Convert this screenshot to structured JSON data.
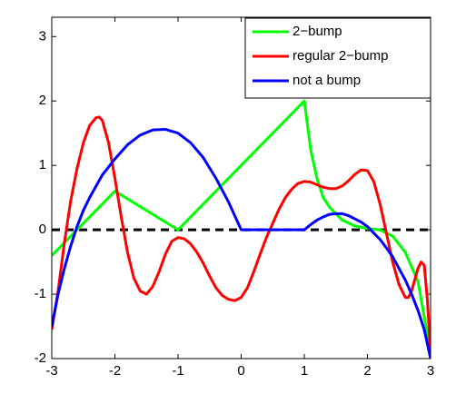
{
  "chart_data": {
    "type": "line",
    "xlim": [
      -3,
      3
    ],
    "ylim": [
      -2,
      3.3
    ],
    "xticks": [
      -3,
      -2,
      -1,
      0,
      1,
      2,
      3
    ],
    "yticks": [
      -2,
      -1,
      0,
      1,
      2,
      3
    ],
    "legend": "upper right",
    "reference_line": {
      "y": 0,
      "color": "#000000",
      "dashed": true
    },
    "series": [
      {
        "name": "2−bump",
        "color": "#00ff00",
        "x": [
          -3,
          -2,
          -1,
          1,
          1.1,
          1.2,
          1.3,
          1.4,
          1.6,
          1.8,
          2,
          2.2,
          2.4,
          2.6,
          2.8,
          3
        ],
        "values": [
          -0.4,
          0.6,
          0,
          2,
          1.25,
          0.8,
          0.5,
          0.35,
          0.15,
          0.06,
          0.02,
          0,
          -0.1,
          -0.35,
          -0.8,
          -1.9
        ]
      },
      {
        "name": "regular 2−bump",
        "color": "#ff0000",
        "x": [
          -3,
          -2.9,
          -2.8,
          -2.7,
          -2.6,
          -2.5,
          -2.4,
          -2.3,
          -2.25,
          -2.2,
          -2.1,
          -2,
          -1.9,
          -1.8,
          -1.7,
          -1.6,
          -1.5,
          -1.4,
          -1.3,
          -1.2,
          -1.1,
          -1,
          -0.9,
          -0.8,
          -0.7,
          -0.6,
          -0.5,
          -0.4,
          -0.3,
          -0.2,
          -0.1,
          0,
          0.1,
          0.2,
          0.3,
          0.4,
          0.5,
          0.6,
          0.7,
          0.8,
          0.9,
          1,
          1.1,
          1.2,
          1.3,
          1.4,
          1.5,
          1.6,
          1.7,
          1.8,
          1.9,
          2,
          2.1,
          2.2,
          2.3,
          2.4,
          2.5,
          2.6,
          2.65,
          2.7,
          2.8,
          2.85,
          2.9,
          2.95,
          3
        ],
        "values": [
          -1.55,
          -0.95,
          -0.2,
          0.45,
          0.95,
          1.35,
          1.62,
          1.74,
          1.75,
          1.7,
          1.35,
          0.8,
          0.2,
          -0.35,
          -0.75,
          -0.95,
          -1.0,
          -0.88,
          -0.65,
          -0.38,
          -0.18,
          -0.12,
          -0.14,
          -0.22,
          -0.35,
          -0.52,
          -0.72,
          -0.9,
          -1.02,
          -1.08,
          -1.1,
          -1.05,
          -0.9,
          -0.65,
          -0.38,
          -0.12,
          0.1,
          0.32,
          0.5,
          0.63,
          0.72,
          0.75,
          0.74,
          0.7,
          0.66,
          0.64,
          0.64,
          0.68,
          0.76,
          0.86,
          0.93,
          0.92,
          0.75,
          0.4,
          -0.05,
          -0.5,
          -0.85,
          -1.05,
          -1.05,
          -0.95,
          -0.6,
          -0.5,
          -0.55,
          -1.1,
          -1.95
        ]
      },
      {
        "name": "not a bump",
        "color": "#0000ff",
        "x": [
          -3,
          -2.9,
          -2.8,
          -2.7,
          -2.6,
          -2.5,
          -2.4,
          -2.2,
          -2,
          -1.8,
          -1.6,
          -1.4,
          -1.2,
          -1,
          -0.8,
          -0.6,
          -0.4,
          -0.2,
          0,
          1,
          1.1,
          1.2,
          1.3,
          1.4,
          1.5,
          1.6,
          1.7,
          1.8,
          1.9,
          2,
          2.1,
          2.2,
          2.3,
          2.4,
          2.5,
          2.6,
          2.7,
          2.8,
          2.9,
          3
        ],
        "values": [
          -1.5,
          -1.0,
          -0.6,
          -0.25,
          0.05,
          0.3,
          0.5,
          0.85,
          1.1,
          1.32,
          1.47,
          1.55,
          1.56,
          1.5,
          1.35,
          1.12,
          0.8,
          0.43,
          0,
          0,
          0.08,
          0.15,
          0.2,
          0.24,
          0.25,
          0.25,
          0.22,
          0.17,
          0.12,
          0.05,
          -0.05,
          -0.15,
          -0.28,
          -0.42,
          -0.6,
          -0.78,
          -1.0,
          -1.25,
          -1.55,
          -2.0
        ]
      }
    ]
  }
}
